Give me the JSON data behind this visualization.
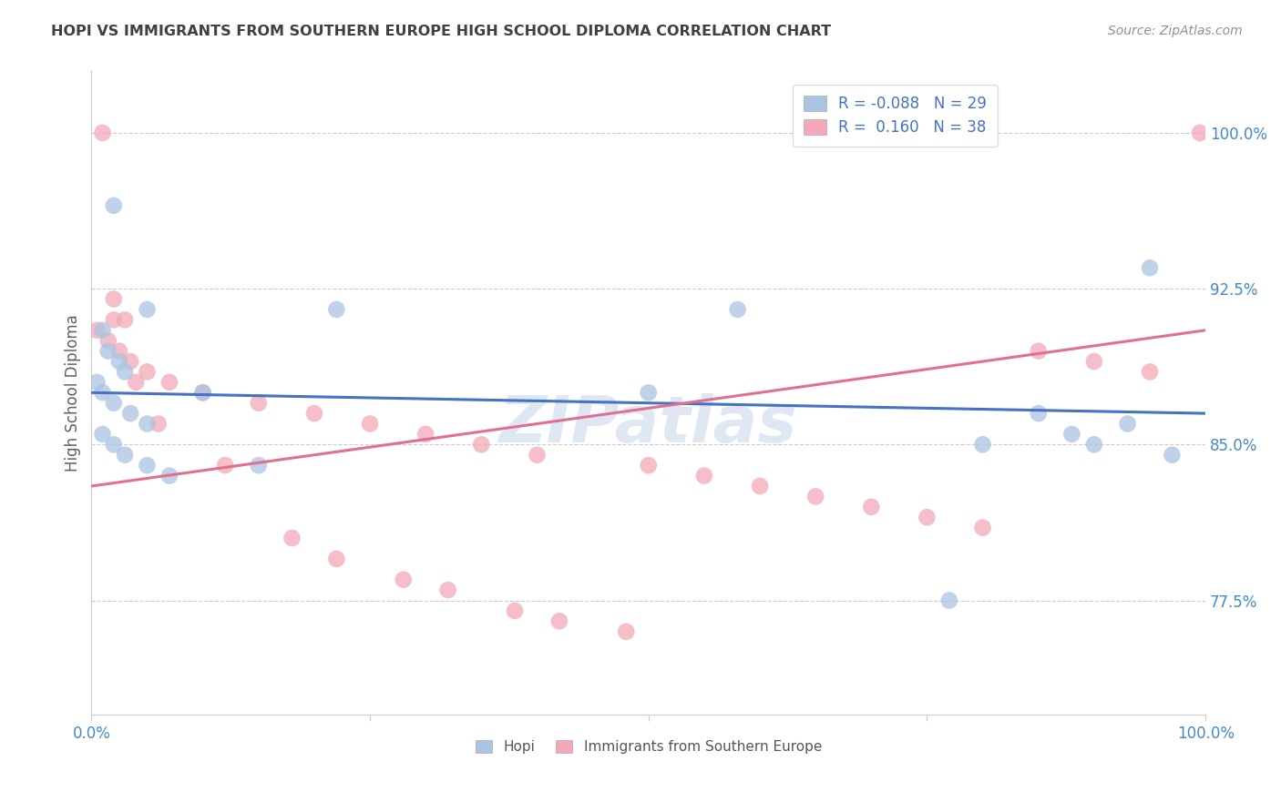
{
  "title": "HOPI VS IMMIGRANTS FROM SOUTHERN EUROPE HIGH SCHOOL DIPLOMA CORRELATION CHART",
  "source": "Source: ZipAtlas.com",
  "ylabel": "High School Diploma",
  "watermark": "ZIPatlas",
  "legend_hopi_label": "Hopi",
  "legend_immigrant_label": "Immigrants from Southern Europe",
  "hopi_R": "-0.088",
  "hopi_N": "29",
  "immigrant_R": "0.160",
  "immigrant_N": "38",
  "ytick_labels": [
    "77.5%",
    "85.0%",
    "92.5%",
    "100.0%"
  ],
  "ytick_values": [
    77.5,
    85.0,
    92.5,
    100.0
  ],
  "xlim": [
    0.0,
    100.0
  ],
  "ylim": [
    72.0,
    103.0
  ],
  "hopi_color": "#aac4e2",
  "immigrant_color": "#f4a8b8",
  "hopi_line_color": "#4472c4",
  "immigrant_line_color": "#e07090",
  "title_color": "#404040",
  "source_color": "#909090",
  "axis_label_color": "#606060",
  "tick_color": "#4488cc",
  "grid_color": "#cccccc",
  "hopi_scatter_x": [
    2.0,
    5.0,
    22.0,
    1.0,
    1.5,
    2.5,
    3.0,
    0.5,
    1.0,
    2.0,
    3.5,
    5.0,
    10.0,
    50.0,
    58.0,
    85.0,
    88.0,
    90.0,
    93.0,
    95.0,
    97.0,
    1.0,
    2.0,
    3.0,
    5.0,
    7.0,
    15.0,
    80.0,
    77.0
  ],
  "hopi_scatter_y": [
    96.5,
    91.5,
    91.5,
    90.5,
    89.5,
    89.0,
    88.5,
    88.0,
    87.5,
    87.0,
    86.5,
    86.0,
    87.5,
    87.5,
    91.5,
    86.5,
    85.5,
    85.0,
    86.0,
    93.5,
    84.5,
    85.5,
    85.0,
    84.5,
    84.0,
    83.5,
    84.0,
    85.0,
    77.5
  ],
  "immigrant_scatter_x": [
    1.0,
    2.0,
    3.0,
    0.5,
    1.5,
    2.5,
    3.5,
    5.0,
    7.0,
    10.0,
    15.0,
    20.0,
    25.0,
    30.0,
    35.0,
    40.0,
    50.0,
    55.0,
    60.0,
    65.0,
    70.0,
    75.0,
    80.0,
    85.0,
    90.0,
    95.0,
    99.5,
    2.0,
    4.0,
    6.0,
    12.0,
    18.0,
    22.0,
    28.0,
    32.0,
    38.0,
    42.0,
    48.0
  ],
  "immigrant_scatter_y": [
    100.0,
    92.0,
    91.0,
    90.5,
    90.0,
    89.5,
    89.0,
    88.5,
    88.0,
    87.5,
    87.0,
    86.5,
    86.0,
    85.5,
    85.0,
    84.5,
    84.0,
    83.5,
    83.0,
    82.5,
    82.0,
    81.5,
    81.0,
    89.5,
    89.0,
    88.5,
    100.0,
    91.0,
    88.0,
    86.0,
    84.0,
    80.5,
    79.5,
    78.5,
    78.0,
    77.0,
    76.5,
    76.0
  ],
  "hopi_line_x0": 0.0,
  "hopi_line_x1": 100.0,
  "hopi_line_y0": 87.5,
  "hopi_line_y1": 86.5,
  "immigrant_line_x0": 0.0,
  "immigrant_line_x1": 100.0,
  "immigrant_line_y0": 83.0,
  "immigrant_line_y1": 90.5
}
